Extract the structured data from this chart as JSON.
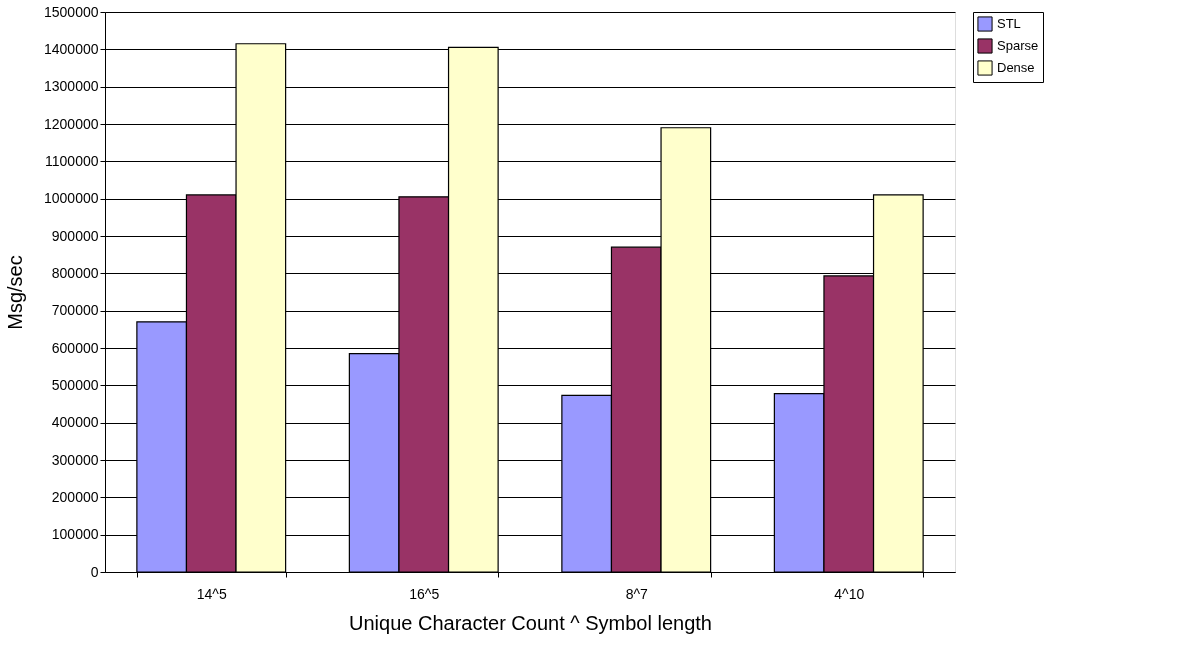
{
  "chart_data": {
    "type": "bar",
    "xlabel": "Unique Character Count ^ Symbol length",
    "ylabel": "Msg/sec",
    "categories": [
      "14^5",
      "16^5",
      "8^7",
      "4^10"
    ],
    "series": [
      {
        "name": "STL",
        "color": "#9999ff",
        "values": [
          670000,
          585000,
          473000,
          478000
        ]
      },
      {
        "name": "Sparse",
        "color": "#993366",
        "values": [
          1010000,
          1005000,
          870000,
          793000
        ]
      },
      {
        "name": "Dense",
        "color": "#ffffcc",
        "values": [
          1415000,
          1405000,
          1190000,
          1010000
        ]
      }
    ],
    "ylim": [
      0,
      1500000
    ],
    "yticks": [
      0,
      100000,
      200000,
      300000,
      400000,
      500000,
      600000,
      700000,
      800000,
      900000,
      1000000,
      1100000,
      1200000,
      1300000,
      1400000,
      1500000
    ],
    "grid": "y",
    "legend": "right"
  }
}
